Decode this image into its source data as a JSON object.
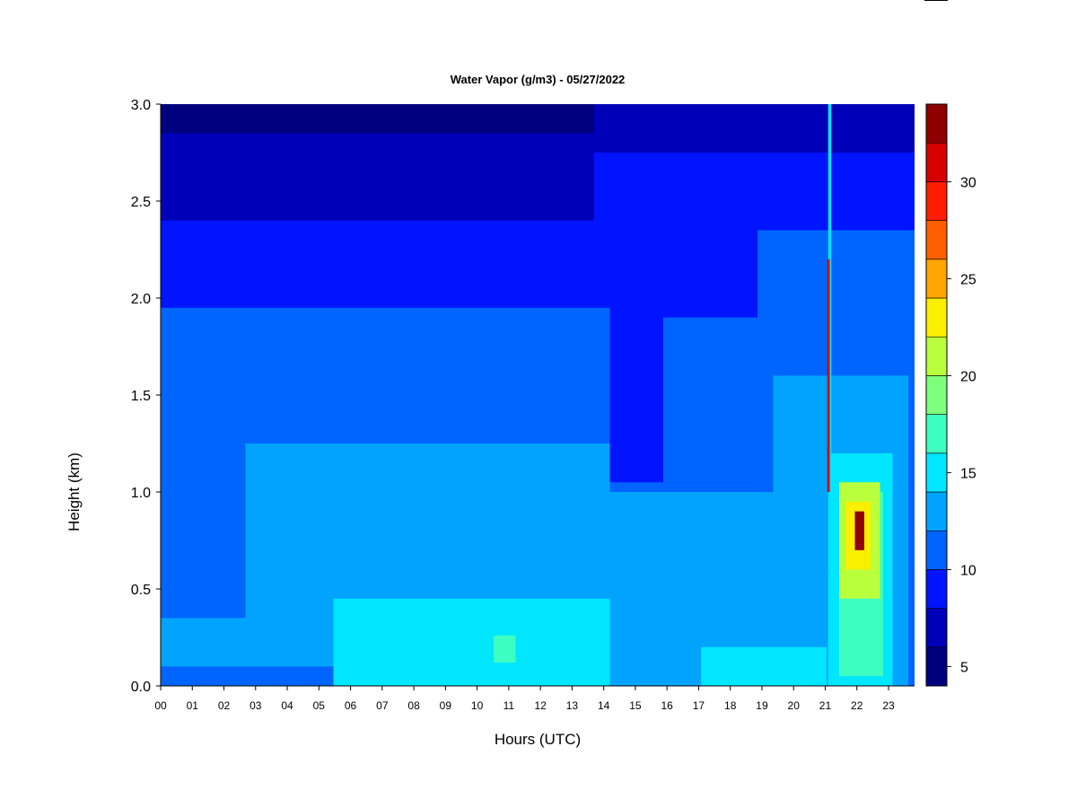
{
  "chart_data": {
    "type": "heatmap",
    "title": "Water Vapor (g/m3) - 05/27/2022",
    "xlabel": "Hours (UTC)",
    "ylabel": "Height (km)",
    "xlim": [
      0,
      24
    ],
    "ylim": [
      0.0,
      3.0
    ],
    "x_ticks": [
      "00",
      "01",
      "02",
      "03",
      "04",
      "05",
      "06",
      "07",
      "08",
      "09",
      "10",
      "11",
      "12",
      "13",
      "14",
      "15",
      "16",
      "17",
      "18",
      "19",
      "20",
      "21",
      "22",
      "23"
    ],
    "y_ticks": [
      "0.0",
      "0.5",
      "1.0",
      "1.5",
      "2.0",
      "2.5",
      "3.0"
    ],
    "colorbar": {
      "range": [
        4,
        34
      ],
      "ticks": [
        "5",
        "10",
        "15",
        "20",
        "25",
        "30"
      ],
      "tick_values": [
        5,
        10,
        15,
        20,
        25,
        30
      ],
      "levels": [
        {
          "from": 4,
          "to": 6,
          "color": "#00007f"
        },
        {
          "from": 6,
          "to": 8,
          "color": "#0000b8"
        },
        {
          "from": 8,
          "to": 10,
          "color": "#0014ff"
        },
        {
          "from": 10,
          "to": 12,
          "color": "#0064ff"
        },
        {
          "from": 12,
          "to": 14,
          "color": "#00a4ff"
        },
        {
          "from": 14,
          "to": 16,
          "color": "#00e6ff"
        },
        {
          "from": 16,
          "to": 18,
          "color": "#3dffc1"
        },
        {
          "from": 18,
          "to": 20,
          "color": "#7cff7b"
        },
        {
          "from": 20,
          "to": 22,
          "color": "#baff3b"
        },
        {
          "from": 22,
          "to": 24,
          "color": "#fbef00"
        },
        {
          "from": 24,
          "to": 26,
          "color": "#ffa400"
        },
        {
          "from": 26,
          "to": 28,
          "color": "#ff5f00"
        },
        {
          "from": 28,
          "to": 30,
          "color": "#ff1c00"
        },
        {
          "from": 30,
          "to": 32,
          "color": "#d70000"
        },
        {
          "from": 32,
          "to": 34,
          "color": "#8f0000"
        }
      ]
    },
    "regions": [
      {
        "x": [
          0,
          24
        ],
        "y": [
          0.0,
          3.0
        ],
        "value": 7
      },
      {
        "x": [
          0,
          13.8
        ],
        "y": [
          2.85,
          3.0
        ],
        "value": 5
      },
      {
        "x": [
          0,
          13.8
        ],
        "y": [
          0.0,
          2.4
        ],
        "value": 9
      },
      {
        "x": [
          13.8,
          24
        ],
        "y": [
          0.0,
          2.75
        ],
        "value": 9
      },
      {
        "x": [
          0,
          14.3
        ],
        "y": [
          0.0,
          1.95
        ],
        "value": 11
      },
      {
        "x": [
          14.3,
          19.0
        ],
        "y": [
          0.0,
          1.05
        ],
        "value": 11
      },
      {
        "x": [
          16.0,
          20.0
        ],
        "y": [
          1.05,
          1.9
        ],
        "value": 11
      },
      {
        "x": [
          19.0,
          24
        ],
        "y": [
          0.0,
          2.35
        ],
        "value": 11
      },
      {
        "x": [
          2.7,
          14.3
        ],
        "y": [
          0.1,
          1.25
        ],
        "value": 13
      },
      {
        "x": [
          0,
          2.7
        ],
        "y": [
          0.1,
          0.35
        ],
        "value": 13
      },
      {
        "x": [
          14.3,
          20.9
        ],
        "y": [
          0.0,
          1.0
        ],
        "value": 13
      },
      {
        "x": [
          19.5,
          23.8
        ],
        "y": [
          0.0,
          1.6
        ],
        "value": 13
      },
      {
        "x": [
          5.5,
          14.3
        ],
        "y": [
          0.0,
          0.45
        ],
        "value": 15
      },
      {
        "x": [
          17.2,
          21.2
        ],
        "y": [
          0.0,
          0.2
        ],
        "value": 15
      },
      {
        "x": [
          21.3,
          23.3
        ],
        "y": [
          0.0,
          1.2
        ],
        "value": 15
      },
      {
        "x": [
          10.6,
          11.3
        ],
        "y": [
          0.12,
          0.26
        ],
        "value": 17
      },
      {
        "x": [
          21.6,
          23.0
        ],
        "y": [
          0.05,
          1.0
        ],
        "value": 17
      },
      {
        "x": [
          21.6,
          22.9
        ],
        "y": [
          0.45,
          1.05
        ],
        "value": 21
      },
      {
        "x": [
          21.8,
          22.6
        ],
        "y": [
          0.6,
          0.95
        ],
        "value": 23
      },
      {
        "x": [
          22.1,
          22.4
        ],
        "y": [
          0.7,
          0.9
        ],
        "value": 33
      },
      {
        "x": [
          21.25,
          21.35
        ],
        "y": [
          0.0,
          3.0
        ],
        "value": 15
      },
      {
        "x": [
          21.22,
          21.3
        ],
        "y": [
          1.0,
          2.2
        ],
        "value": 31
      }
    ]
  }
}
